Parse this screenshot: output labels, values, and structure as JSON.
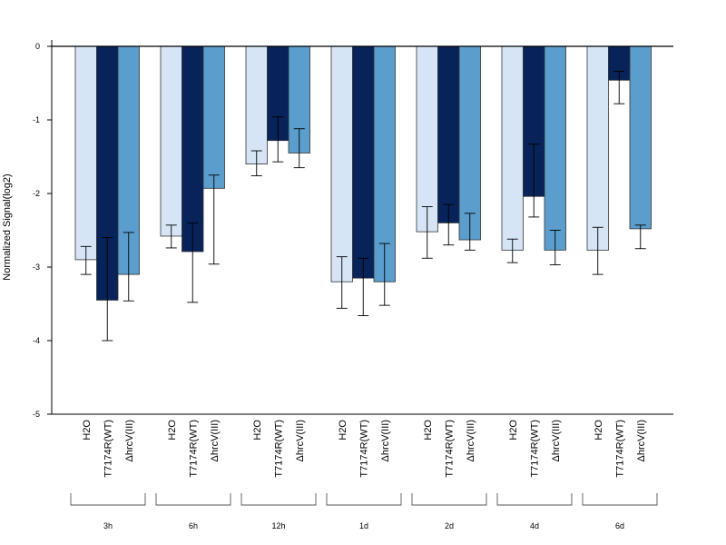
{
  "chart_data": {
    "type": "bar",
    "ylabel": "Normalized Signal(log2)",
    "ylim": [
      -5,
      0
    ],
    "yticks": [
      "0",
      "-1",
      "-2",
      "-3",
      "-4",
      "-5"
    ],
    "categories": [
      "3h",
      "6h",
      "12h",
      "1d",
      "2d",
      "4d",
      "6d"
    ],
    "series": [
      {
        "name": "H2O",
        "color": "#d6e5f5",
        "values": [
          -2.9,
          -2.58,
          -1.6,
          -3.2,
          -2.52,
          -2.77,
          -2.77
        ],
        "err_low": [
          -3.1,
          -2.74,
          -1.76,
          -3.56,
          -2.88,
          -2.94,
          -3.1
        ],
        "err_high": [
          -2.72,
          -2.43,
          -1.42,
          -2.86,
          -2.18,
          -2.62,
          -2.46
        ]
      },
      {
        "name": "T7174R(WT)",
        "color": "#08225a",
        "values": [
          -3.45,
          -2.79,
          -1.28,
          -3.15,
          -2.4,
          -2.04,
          -0.46
        ],
        "err_low": [
          -4.0,
          -3.48,
          -1.57,
          -3.66,
          -2.7,
          -2.32,
          -0.78
        ],
        "err_high": [
          -2.6,
          -2.4,
          -0.96,
          -2.88,
          -2.15,
          -1.33,
          -0.34
        ]
      },
      {
        "name": "ΔhrcV(III)",
        "color": "#5b9dcc",
        "values": [
          -3.1,
          -1.93,
          -1.45,
          -3.2,
          -2.63,
          -2.77,
          -2.48
        ],
        "err_low": [
          -3.46,
          -2.96,
          -1.65,
          -3.52,
          -2.77,
          -2.97,
          -2.75
        ],
        "err_high": [
          -2.53,
          -1.75,
          -1.12,
          -2.68,
          -2.27,
          -2.5,
          -2.43
        ]
      }
    ]
  }
}
